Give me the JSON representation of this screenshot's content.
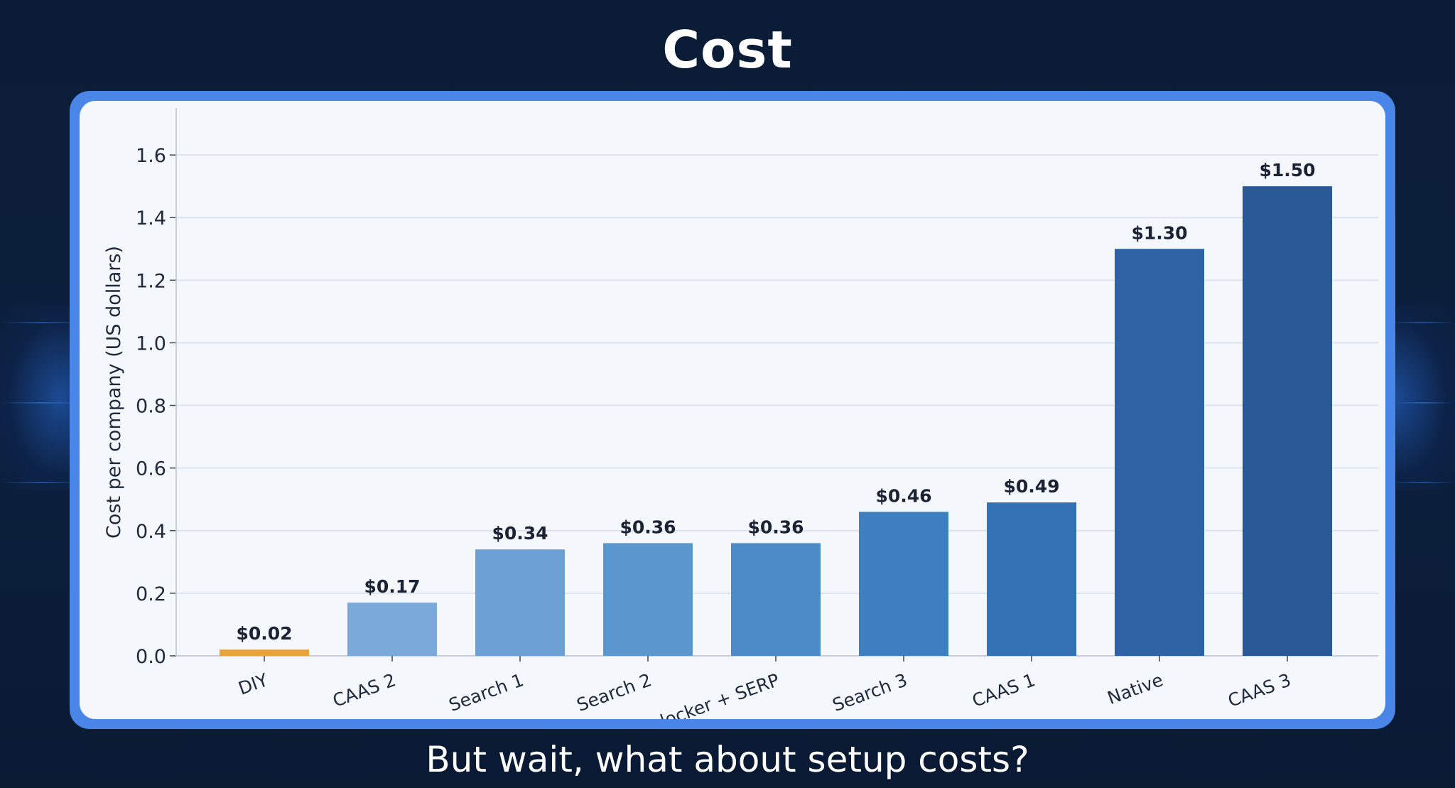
{
  "page": {
    "title": "Cost",
    "subtitle": "But wait, what about setup costs?"
  },
  "chart_data": {
    "type": "bar",
    "title": "",
    "xlabel": "",
    "ylabel": "Cost per company (US dollars)",
    "ylim": [
      0,
      1.75
    ],
    "yticks": [
      "0.0",
      "0.2",
      "0.4",
      "0.6",
      "0.8",
      "1.0",
      "1.2",
      "1.4",
      "1.6"
    ],
    "categories": [
      "DIY",
      "CAAS 2",
      "Search 1",
      "Search 2",
      "Unlocker + SERP",
      "Search 3",
      "CAAS 1",
      "Native",
      "CAAS 3"
    ],
    "values": [
      0.02,
      0.17,
      0.34,
      0.36,
      0.36,
      0.46,
      0.49,
      1.3,
      1.5
    ],
    "labels": [
      "$0.02",
      "$0.17",
      "$0.34",
      "$0.36",
      "$0.36",
      "$0.46",
      "$0.49",
      "$1.30",
      "$1.50"
    ],
    "colors": [
      "#e8a33d",
      "#7aa9da",
      "#6ca0d5",
      "#5b96cf",
      "#4d8bc8",
      "#3e7fc0",
      "#3371b4",
      "#2d63a5",
      "#2a5896"
    ],
    "grid": true,
    "legend": "none"
  }
}
